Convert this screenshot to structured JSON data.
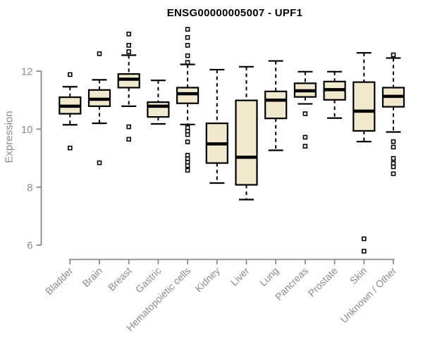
{
  "chart_data": {
    "type": "boxplot",
    "title": "ENSG00000005007 - UPF1",
    "ylabel": "Expression",
    "xlabel": "",
    "yticks": [
      6,
      8,
      10,
      12
    ],
    "ylim": [
      5.5,
      13.5
    ],
    "grid": false,
    "legend_position": "none",
    "categories": [
      "Bladder",
      "Brain",
      "Breast",
      "Gastric",
      "Hematopoietic cells",
      "Kidney",
      "Liver",
      "Lung",
      "Pancreas",
      "Prostate",
      "Skin",
      "Unknown / Other"
    ],
    "boxes": [
      {
        "category": "Bladder",
        "low": 10.15,
        "q1": 10.53,
        "median": 10.79,
        "q3": 11.1,
        "high": 11.46,
        "outliers": [
          11.88,
          9.35
        ]
      },
      {
        "category": "Brain",
        "low": 10.2,
        "q1": 10.79,
        "median": 11.03,
        "q3": 11.35,
        "high": 11.7,
        "outliers": [
          12.6,
          8.84
        ]
      },
      {
        "category": "Breast",
        "low": 10.79,
        "q1": 11.43,
        "median": 11.72,
        "q3": 11.9,
        "high": 12.55,
        "outliers": [
          13.28,
          12.89,
          12.67,
          10.08,
          9.65
        ]
      },
      {
        "category": "Gastric",
        "low": 10.18,
        "q1": 10.42,
        "median": 10.79,
        "q3": 10.93,
        "high": 11.68,
        "outliers": []
      },
      {
        "category": "Hematopoietic cells",
        "low": 10.16,
        "q1": 10.89,
        "median": 11.22,
        "q3": 11.43,
        "high": 12.23,
        "outliers": [
          13.44,
          13.16,
          12.89,
          12.53,
          12.3,
          10.05,
          9.93,
          9.81,
          9.56,
          9.1,
          8.98,
          8.86,
          8.74,
          8.58
        ]
      },
      {
        "category": "Kidney",
        "low": 8.14,
        "q1": 8.83,
        "median": 9.49,
        "q3": 10.2,
        "high": 12.05,
        "outliers": []
      },
      {
        "category": "Liver",
        "low": 7.57,
        "q1": 8.08,
        "median": 9.03,
        "q3": 10.99,
        "high": 12.15,
        "outliers": []
      },
      {
        "category": "Lung",
        "low": 9.27,
        "q1": 10.37,
        "median": 11.0,
        "q3": 11.3,
        "high": 12.35,
        "outliers": []
      },
      {
        "category": "Pancreas",
        "low": 10.87,
        "q1": 11.11,
        "median": 11.32,
        "q3": 11.58,
        "high": 11.98,
        "outliers": [
          10.53,
          9.72,
          9.41
        ]
      },
      {
        "category": "Prostate",
        "low": 10.38,
        "q1": 11.01,
        "median": 11.36,
        "q3": 11.64,
        "high": 11.98,
        "outliers": []
      },
      {
        "category": "Skin",
        "low": 9.57,
        "q1": 9.94,
        "median": 10.62,
        "q3": 11.62,
        "high": 12.63,
        "outliers": [
          6.22,
          5.79
        ]
      },
      {
        "category": "Unknown / Other",
        "low": 9.9,
        "q1": 10.77,
        "median": 11.13,
        "q3": 11.43,
        "high": 12.45,
        "outliers": [
          12.56,
          9.57,
          9.38,
          8.99,
          8.82,
          8.7,
          8.46
        ]
      }
    ],
    "style": {
      "box_fill": "#F0E9CE",
      "box_border": "#000000",
      "median_color": "#000000",
      "whisker_color": "#000000",
      "axis_color": "#8a8a8a",
      "tick_label_color": "#8c8c8c",
      "title_color": "#000000",
      "background": "#ffffff"
    }
  }
}
